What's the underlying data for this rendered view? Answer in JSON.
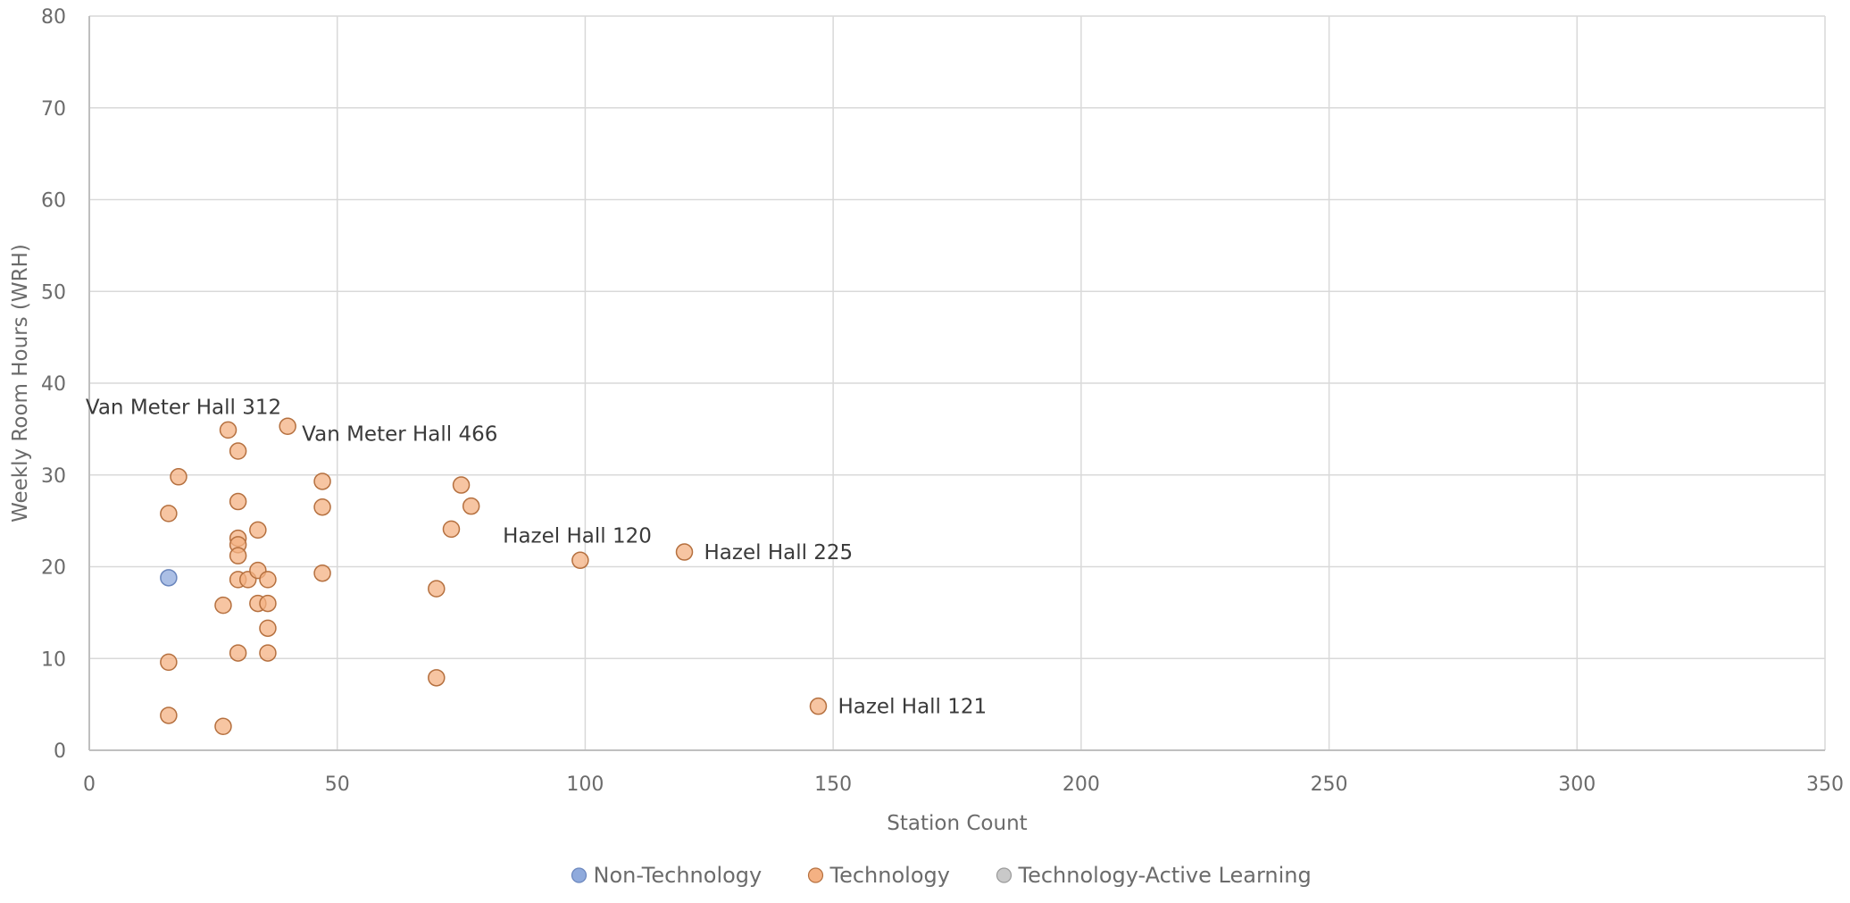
{
  "chart_data": {
    "type": "scatter",
    "title": "",
    "xlabel": "Station Count",
    "ylabel": "Weekly Room Hours (WRH)",
    "xlim": [
      0,
      350
    ],
    "ylim": [
      0,
      80
    ],
    "xticks": [
      0,
      50,
      100,
      150,
      200,
      250,
      300,
      350
    ],
    "yticks": [
      0,
      10,
      20,
      30,
      40,
      50,
      60,
      70,
      80
    ],
    "grid": true,
    "legend_position": "bottom",
    "series": [
      {
        "name": "Non-Technology",
        "color": "#8faadc",
        "points": [
          {
            "x": 16,
            "y": 18.8
          }
        ]
      },
      {
        "name": "Technology",
        "color": "#f4b183",
        "points": [
          {
            "x": 16,
            "y": 25.8
          },
          {
            "x": 16,
            "y": 9.6
          },
          {
            "x": 16,
            "y": 3.8
          },
          {
            "x": 18,
            "y": 29.8
          },
          {
            "x": 27,
            "y": 15.8
          },
          {
            "x": 27,
            "y": 2.6
          },
          {
            "x": 28,
            "y": 34.9,
            "label": "Van Meter Hall 312"
          },
          {
            "x": 30,
            "y": 32.6
          },
          {
            "x": 30,
            "y": 27.1
          },
          {
            "x": 30,
            "y": 23.1
          },
          {
            "x": 30,
            "y": 22.4
          },
          {
            "x": 30,
            "y": 21.2
          },
          {
            "x": 30,
            "y": 18.6
          },
          {
            "x": 30,
            "y": 10.6
          },
          {
            "x": 32,
            "y": 18.6
          },
          {
            "x": 34,
            "y": 24.0
          },
          {
            "x": 34,
            "y": 19.6
          },
          {
            "x": 34,
            "y": 16.0
          },
          {
            "x": 36,
            "y": 18.6
          },
          {
            "x": 36,
            "y": 16.0
          },
          {
            "x": 36,
            "y": 13.3
          },
          {
            "x": 36,
            "y": 10.6
          },
          {
            "x": 40,
            "y": 35.3,
            "label": "Van Meter Hall 466"
          },
          {
            "x": 47,
            "y": 29.3
          },
          {
            "x": 47,
            "y": 26.5
          },
          {
            "x": 47,
            "y": 19.3
          },
          {
            "x": 70,
            "y": 17.6
          },
          {
            "x": 70,
            "y": 7.9
          },
          {
            "x": 73,
            "y": 24.1
          },
          {
            "x": 75,
            "y": 28.9
          },
          {
            "x": 77,
            "y": 26.6
          },
          {
            "x": 99,
            "y": 20.7,
            "label": "Hazel Hall 120"
          },
          {
            "x": 120,
            "y": 21.6,
            "label": "Hazel Hall 225"
          },
          {
            "x": 147,
            "y": 4.8,
            "label": "Hazel Hall 121"
          }
        ]
      },
      {
        "name": "Technology-Active Learning",
        "color": "#c9c9c9",
        "points": []
      }
    ]
  }
}
